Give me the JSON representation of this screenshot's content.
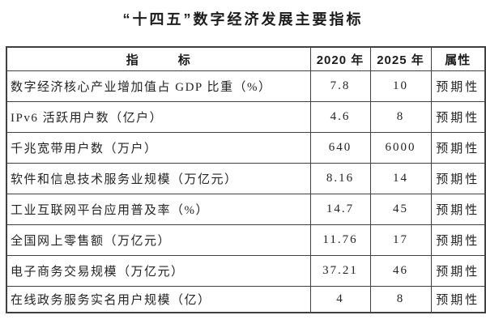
{
  "colors": {
    "background": "#ffffff",
    "border": "#404040",
    "text": "#1c1c1c"
  },
  "chart_data": {
    "type": "table",
    "title": "“十四五”数字经济发展主要指标",
    "columns": [
      "指　　　标",
      "2020 年",
      "2025 年",
      "属性"
    ],
    "rows": [
      [
        "数字经济核心产业增加值占 GDP 比重（%）",
        "7.8",
        "10",
        "预期性"
      ],
      [
        "IPv6 活跃用户数（亿户）",
        "4.6",
        "8",
        "预期性"
      ],
      [
        "千兆宽带用户数（万户）",
        "640",
        "6000",
        "预期性"
      ],
      [
        "软件和信息技术服务业规模（万亿元）",
        "8.16",
        "14",
        "预期性"
      ],
      [
        "工业互联网平台应用普及率（%）",
        "14.7",
        "45",
        "预期性"
      ],
      [
        "全国网上零售额（万亿元）",
        "11.76",
        "17",
        "预期性"
      ],
      [
        "电子商务交易规模（万亿元）",
        "37.21",
        "46",
        "预期性"
      ],
      [
        "在线政务服务实名用户规模（亿）",
        "4",
        "8",
        "预期性"
      ]
    ]
  }
}
